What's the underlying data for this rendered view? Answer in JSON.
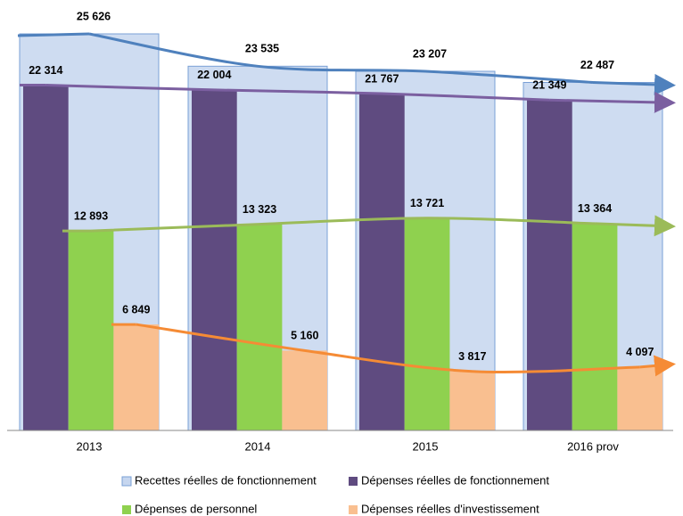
{
  "chart_data": {
    "type": "bar",
    "categories": [
      "2013",
      "2014",
      "2015",
      "2016 prov"
    ],
    "legend": "bottom",
    "series": [
      {
        "name": "Recettes réelles de fonctionnement",
        "color": "#c6d6ef",
        "values": [
          25626,
          23535,
          23207,
          22487
        ],
        "value_labels": [
          "25 626",
          "23 535",
          "23 207",
          "22 487"
        ]
      },
      {
        "name": "Dépenses réelles de fonctionnement",
        "color": "#5f4b80",
        "values": [
          22314,
          22004,
          21767,
          21349
        ],
        "value_labels": [
          "22 314",
          "22 004",
          "21 767",
          "21 349"
        ]
      },
      {
        "name": "Dépenses de personnel",
        "color": "#8fd14f",
        "values": [
          12893,
          13323,
          13721,
          13364
        ],
        "value_labels": [
          "12 893",
          "13 323",
          "13 721",
          "13 364"
        ]
      },
      {
        "name": "Dépenses réelles d'investissement",
        "color": "#f9bf90",
        "values": [
          6849,
          5160,
          3817,
          4097
        ],
        "value_labels": [
          "6 849",
          "5 160",
          "3 817",
          "4 097"
        ]
      }
    ]
  }
}
